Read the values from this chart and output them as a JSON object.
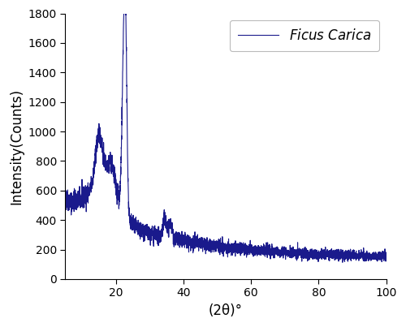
{
  "line_color": "#1a1a8c",
  "line_width": 0.8,
  "xlabel": "(2θ)°",
  "ylabel": "Intensity(Counts)",
  "xlim": [
    5,
    100
  ],
  "ylim": [
    0,
    1800
  ],
  "xticks": [
    20,
    40,
    60,
    80,
    100
  ],
  "yticks": [
    0,
    200,
    400,
    600,
    800,
    1000,
    1200,
    1400,
    1600,
    1800
  ],
  "legend_label": "Ficus Carica",
  "legend_fontsize": 12,
  "axis_label_fontsize": 12,
  "tick_fontsize": 10,
  "background_color": "#ffffff",
  "seed": 42
}
